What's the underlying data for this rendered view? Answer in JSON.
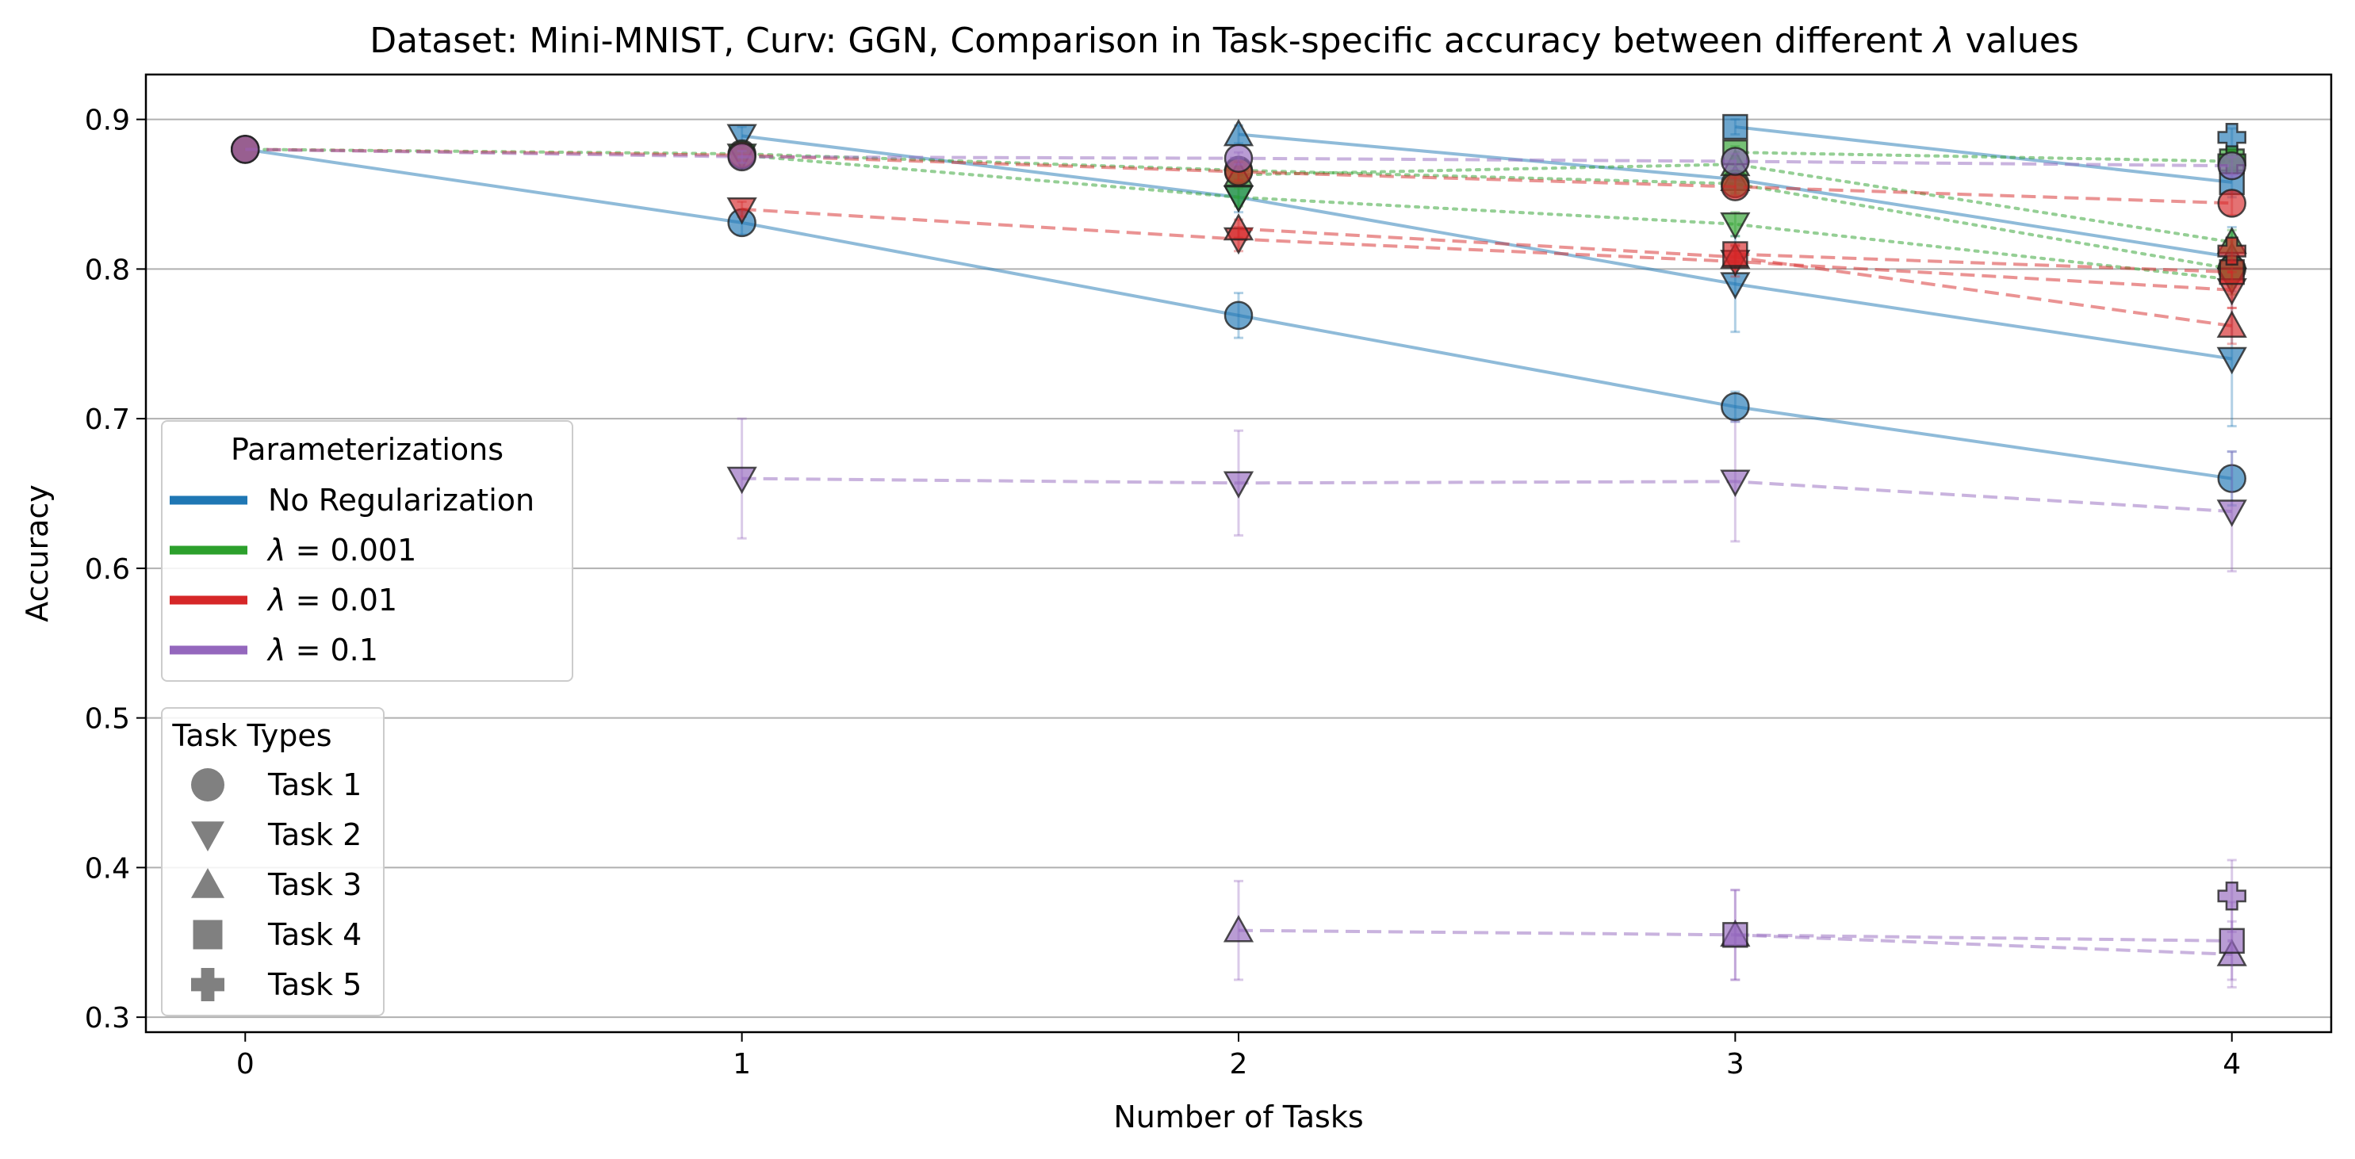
{
  "chart_data": {
    "type": "line",
    "title_prefix": "Dataset: Mini-MNIST, Curv: GGN, Comparison in Task-specific accuracy between different ",
    "title_symbol": "λ",
    "title_suffix": " values",
    "xlabel": "Number of Tasks",
    "ylabel": "Accuracy",
    "xlim": [
      -0.2,
      4.2
    ],
    "ylim": [
      0.29,
      0.93
    ],
    "x_ticks": [
      "0",
      "1",
      "2",
      "3",
      "4"
    ],
    "y_ticks": [
      "0.3",
      "0.4",
      "0.5",
      "0.6",
      "0.7",
      "0.8",
      "0.9"
    ],
    "grid": "horizontal",
    "legend_params_title": "Parameterizations",
    "legend_params": [
      {
        "symbol": "",
        "text": "No Regularization",
        "color": "#1f77b4"
      },
      {
        "symbol": "λ",
        "text": " = 0.001",
        "color": "#2ca02c"
      },
      {
        "symbol": "λ",
        "text": " = 0.01",
        "color": "#d62728"
      },
      {
        "symbol": "λ",
        "text": " = 0.1",
        "color": "#9467bd"
      }
    ],
    "legend_tasks_title": "Task Types",
    "legend_tasks": [
      {
        "label": "Task 1",
        "marker": "circle"
      },
      {
        "label": "Task 2",
        "marker": "triangle-down"
      },
      {
        "label": "Task 3",
        "marker": "triangle-up"
      },
      {
        "label": "Task 4",
        "marker": "square"
      },
      {
        "label": "Task 5",
        "marker": "plus"
      }
    ],
    "series": [
      {
        "param": "No Regularization",
        "color": "#1f77b4",
        "dash": "solid",
        "task": 1,
        "marker": "circle",
        "x": [
          0,
          1,
          2,
          3,
          4
        ],
        "y": [
          0.88,
          0.831,
          0.769,
          0.708,
          0.66
        ],
        "err": [
          0,
          0.008,
          0.015,
          0.01,
          0.018
        ]
      },
      {
        "param": "No Regularization",
        "color": "#1f77b4",
        "dash": "solid",
        "task": 2,
        "marker": "triangle-down",
        "x": [
          1,
          2,
          3,
          4
        ],
        "y": [
          0.889,
          0.848,
          0.79,
          0.74
        ],
        "err": [
          0.006,
          0.01,
          0.032,
          0.045
        ]
      },
      {
        "param": "No Regularization",
        "color": "#1f77b4",
        "dash": "solid",
        "task": 3,
        "marker": "triangle-up",
        "x": [
          2,
          3,
          4
        ],
        "y": [
          0.89,
          0.86,
          0.808
        ],
        "err": [
          0.006,
          0.01,
          0.02
        ]
      },
      {
        "param": "No Regularization",
        "color": "#1f77b4",
        "dash": "solid",
        "task": 4,
        "marker": "square",
        "x": [
          3,
          4
        ],
        "y": [
          0.895,
          0.858
        ],
        "err": [
          0.005,
          0.01
        ]
      },
      {
        "param": "No Regularization",
        "color": "#1f77b4",
        "dash": "solid",
        "task": 5,
        "marker": "plus",
        "x": [
          4
        ],
        "y": [
          0.888
        ],
        "err": [
          0.006
        ]
      },
      {
        "param": "λ = 0.001",
        "color": "#2ca02c",
        "dash": "dotted",
        "task": 1,
        "marker": "circle",
        "x": [
          0,
          1,
          2,
          3,
          4
        ],
        "y": [
          0.88,
          0.877,
          0.866,
          0.857,
          0.8
        ],
        "err": [
          0,
          0.004,
          0.006,
          0.006,
          0.008
        ]
      },
      {
        "param": "λ = 0.001",
        "color": "#2ca02c",
        "dash": "dotted",
        "task": 2,
        "marker": "triangle-down",
        "x": [
          1,
          2,
          3,
          4
        ],
        "y": [
          0.876,
          0.848,
          0.83,
          0.793
        ],
        "err": [
          0.004,
          0.006,
          0.008,
          0.01
        ]
      },
      {
        "param": "λ = 0.001",
        "color": "#2ca02c",
        "dash": "dotted",
        "task": 3,
        "marker": "triangle-up",
        "x": [
          2,
          3,
          4
        ],
        "y": [
          0.863,
          0.87,
          0.818
        ],
        "err": [
          0.005,
          0.006,
          0.008
        ]
      },
      {
        "param": "λ = 0.001",
        "color": "#2ca02c",
        "dash": "dotted",
        "task": 4,
        "marker": "square",
        "x": [
          3,
          4
        ],
        "y": [
          0.878,
          0.872
        ],
        "err": [
          0.004,
          0.006
        ]
      },
      {
        "param": "λ = 0.001",
        "color": "#2ca02c",
        "dash": "dotted",
        "task": 5,
        "marker": "plus",
        "x": [
          4
        ],
        "y": [
          0.873
        ],
        "err": [
          0.006
        ]
      },
      {
        "param": "λ = 0.01",
        "color": "#d62728",
        "dash": "dashed",
        "task": 1,
        "marker": "circle",
        "x": [
          0,
          1,
          2,
          3,
          4
        ],
        "y": [
          0.88,
          0.876,
          0.865,
          0.855,
          0.844
        ],
        "err": [
          0,
          0.004,
          0.006,
          0.006,
          0.008
        ]
      },
      {
        "param": "λ = 0.01",
        "color": "#d62728",
        "dash": "dashed",
        "task": 2,
        "marker": "triangle-down",
        "x": [
          1,
          2,
          3,
          4
        ],
        "y": [
          0.84,
          0.82,
          0.805,
          0.786
        ],
        "err": [
          0.005,
          0.008,
          0.01,
          0.012
        ]
      },
      {
        "param": "λ = 0.01",
        "color": "#d62728",
        "dash": "dashed",
        "task": 3,
        "marker": "triangle-up",
        "x": [
          2,
          3,
          4
        ],
        "y": [
          0.827,
          0.808,
          0.762
        ],
        "err": [
          0.006,
          0.008,
          0.012
        ]
      },
      {
        "param": "λ = 0.01",
        "color": "#d62728",
        "dash": "dashed",
        "task": 4,
        "marker": "square",
        "x": [
          3,
          4
        ],
        "y": [
          0.81,
          0.798
        ],
        "err": [
          0.006,
          0.008
        ]
      },
      {
        "param": "λ = 0.01",
        "color": "#d62728",
        "dash": "dashed",
        "task": 5,
        "marker": "plus",
        "x": [
          4
        ],
        "y": [
          0.812
        ],
        "err": [
          0.008
        ]
      },
      {
        "param": "λ = 0.1",
        "color": "#9467bd",
        "dash": "dashed",
        "task": 1,
        "marker": "circle",
        "x": [
          0,
          1,
          2,
          3,
          4
        ],
        "y": [
          0.88,
          0.875,
          0.874,
          0.872,
          0.869
        ],
        "err": [
          0,
          0.004,
          0.004,
          0.005,
          0.006
        ]
      },
      {
        "param": "λ = 0.1",
        "color": "#9467bd",
        "dash": "dashed",
        "task": 2,
        "marker": "triangle-down",
        "x": [
          1,
          2,
          3,
          4
        ],
        "y": [
          0.66,
          0.657,
          0.658,
          0.638
        ],
        "err": [
          0.04,
          0.035,
          0.04,
          0.04
        ]
      },
      {
        "param": "λ = 0.1",
        "color": "#9467bd",
        "dash": "dashed",
        "task": 3,
        "marker": "triangle-up",
        "x": [
          2,
          3,
          4
        ],
        "y": [
          0.358,
          0.355,
          0.342
        ],
        "err": [
          0.033,
          0.03,
          0.022
        ]
      },
      {
        "param": "λ = 0.1",
        "color": "#9467bd",
        "dash": "dashed",
        "task": 4,
        "marker": "square",
        "x": [
          3,
          4
        ],
        "y": [
          0.355,
          0.351
        ],
        "err": [
          0.03,
          0.026
        ]
      },
      {
        "param": "λ = 0.1",
        "color": "#9467bd",
        "dash": "dashed",
        "task": 5,
        "marker": "plus",
        "x": [
          4
        ],
        "y": [
          0.381
        ],
        "err": [
          0.024
        ]
      }
    ]
  }
}
